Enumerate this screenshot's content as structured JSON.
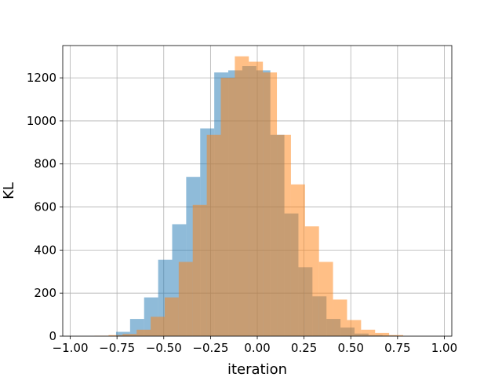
{
  "chart_data": {
    "type": "bar",
    "xlabel": "iteration",
    "ylabel": "KL",
    "xlim": [
      -1.04,
      1.04
    ],
    "ylim": [
      0,
      1350
    ],
    "grid": true,
    "x_ticks": [
      -1.0,
      -0.75,
      -0.5,
      -0.25,
      0.0,
      0.25,
      0.5,
      0.75,
      1.0
    ],
    "x_tick_labels": [
      "−1.00",
      "−0.75",
      "−0.50",
      "−0.25",
      "0.00",
      "0.25",
      "0.50",
      "0.75",
      "1.00"
    ],
    "y_ticks": [
      0,
      200,
      400,
      600,
      800,
      1000,
      1200
    ],
    "y_tick_labels": [
      "0",
      "200",
      "400",
      "600",
      "800",
      "1000",
      "1200"
    ],
    "series": [
      {
        "color": "#1f77b4",
        "opacity": 0.5,
        "bins": [
          {
            "x0": -0.755,
            "x1": -0.68,
            "count": 20
          },
          {
            "x0": -0.68,
            "x1": -0.605,
            "count": 80
          },
          {
            "x0": -0.605,
            "x1": -0.53,
            "count": 180
          },
          {
            "x0": -0.53,
            "x1": -0.455,
            "count": 355
          },
          {
            "x0": -0.455,
            "x1": -0.38,
            "count": 520
          },
          {
            "x0": -0.38,
            "x1": -0.305,
            "count": 740
          },
          {
            "x0": -0.305,
            "x1": -0.23,
            "count": 965
          },
          {
            "x0": -0.23,
            "x1": -0.155,
            "count": 1225
          },
          {
            "x0": -0.155,
            "x1": -0.08,
            "count": 1235
          },
          {
            "x0": -0.08,
            "x1": -0.005,
            "count": 1255
          },
          {
            "x0": -0.005,
            "x1": 0.07,
            "count": 1235
          },
          {
            "x0": 0.07,
            "x1": 0.145,
            "count": 935
          },
          {
            "x0": 0.145,
            "x1": 0.22,
            "count": 570
          },
          {
            "x0": 0.22,
            "x1": 0.295,
            "count": 320
          },
          {
            "x0": 0.295,
            "x1": 0.37,
            "count": 185
          },
          {
            "x0": 0.37,
            "x1": 0.445,
            "count": 80
          },
          {
            "x0": 0.445,
            "x1": 0.52,
            "count": 40
          },
          {
            "x0": 0.52,
            "x1": 0.595,
            "count": 12
          },
          {
            "x0": 0.595,
            "x1": 0.67,
            "count": 5
          },
          {
            "x0": 0.67,
            "x1": 0.745,
            "count": 3
          }
        ]
      },
      {
        "color": "#ff7f0e",
        "opacity": 0.5,
        "bins": [
          {
            "x0": -0.87,
            "x1": -0.795,
            "count": 2
          },
          {
            "x0": -0.795,
            "x1": -0.72,
            "count": 5
          },
          {
            "x0": -0.72,
            "x1": -0.645,
            "count": 10
          },
          {
            "x0": -0.645,
            "x1": -0.57,
            "count": 30
          },
          {
            "x0": -0.57,
            "x1": -0.495,
            "count": 90
          },
          {
            "x0": -0.495,
            "x1": -0.42,
            "count": 180
          },
          {
            "x0": -0.42,
            "x1": -0.345,
            "count": 345
          },
          {
            "x0": -0.345,
            "x1": -0.27,
            "count": 610
          },
          {
            "x0": -0.27,
            "x1": -0.195,
            "count": 935
          },
          {
            "x0": -0.195,
            "x1": -0.12,
            "count": 1200
          },
          {
            "x0": -0.12,
            "x1": -0.045,
            "count": 1300
          },
          {
            "x0": -0.045,
            "x1": 0.03,
            "count": 1275
          },
          {
            "x0": 0.03,
            "x1": 0.105,
            "count": 1225
          },
          {
            "x0": 0.105,
            "x1": 0.18,
            "count": 935
          },
          {
            "x0": 0.18,
            "x1": 0.255,
            "count": 705
          },
          {
            "x0": 0.255,
            "x1": 0.33,
            "count": 510
          },
          {
            "x0": 0.33,
            "x1": 0.405,
            "count": 345
          },
          {
            "x0": 0.405,
            "x1": 0.48,
            "count": 170
          },
          {
            "x0": 0.48,
            "x1": 0.555,
            "count": 75
          },
          {
            "x0": 0.555,
            "x1": 0.63,
            "count": 30
          },
          {
            "x0": 0.63,
            "x1": 0.705,
            "count": 15
          },
          {
            "x0": 0.705,
            "x1": 0.78,
            "count": 5
          }
        ]
      }
    ]
  }
}
